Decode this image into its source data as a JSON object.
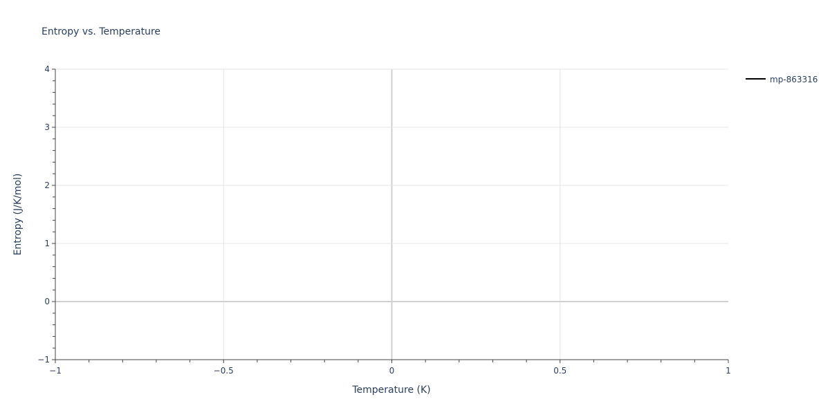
{
  "chart_data": {
    "type": "line",
    "title": "Entropy vs. Temperature",
    "xlabel": "Temperature (K)",
    "ylabel": "Entropy (J/K/mol)",
    "xlim": [
      -1,
      1
    ],
    "ylim": [
      -1,
      4
    ],
    "x_ticks": [
      -1,
      -0.5,
      0,
      0.5,
      1
    ],
    "x_tick_labels": [
      "−1",
      "−0.5",
      "0",
      "0.5",
      "1"
    ],
    "y_ticks": [
      -1,
      0,
      1,
      2,
      3,
      4
    ],
    "y_tick_labels": [
      "−1",
      "0",
      "1",
      "2",
      "3",
      "4"
    ],
    "grid": true,
    "legend_position": "top-right",
    "series": [
      {
        "name": "mp-863316",
        "color": "#000000",
        "x": [],
        "y": []
      }
    ]
  }
}
